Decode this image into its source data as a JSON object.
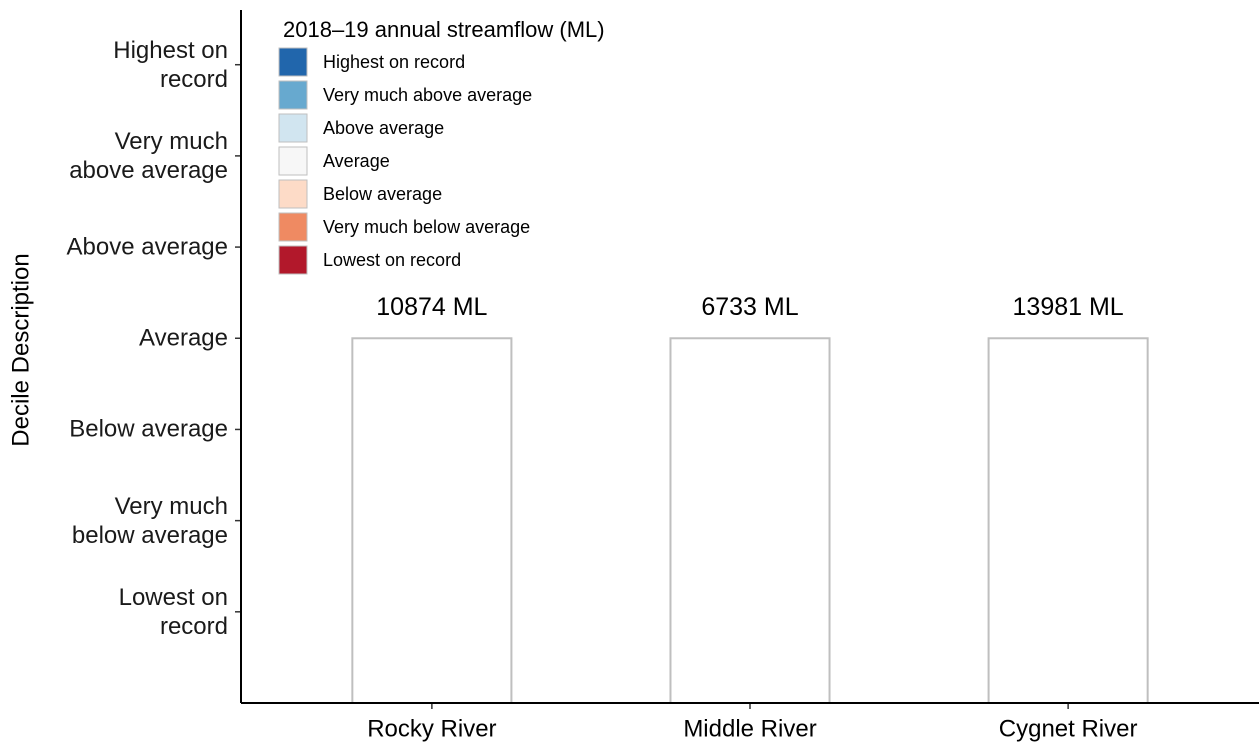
{
  "chart_data": {
    "type": "bar",
    "y_label": "Decile Description",
    "legend_title": "2018–19 annual streamflow (ML)",
    "legend": [
      {
        "name": "Highest on record",
        "color": "#2166ac"
      },
      {
        "name": "Very much above average",
        "color": "#67a9cf"
      },
      {
        "name": "Above average",
        "color": "#d1e5f0"
      },
      {
        "name": "Average",
        "color": "#f7f7f7"
      },
      {
        "name": "Below average",
        "color": "#fddbc7"
      },
      {
        "name": "Very much below average",
        "color": "#ef8a62"
      },
      {
        "name": "Lowest on record",
        "color": "#b2182b"
      }
    ],
    "categories": [
      "Rocky River",
      "Middle River",
      "Cygnet River"
    ],
    "values": [
      4,
      4,
      4
    ],
    "labels": [
      "10874 ML",
      "6733 ML",
      "13981 ML"
    ],
    "color": "#ffffff",
    "edge_color": "#bfbfbf",
    "ylim": [
      0,
      7.6
    ],
    "yticks": [
      {
        "value": 1,
        "label": "Lowest on record"
      },
      {
        "value": 2,
        "label": "Very much below average"
      },
      {
        "value": 3,
        "label": "Below average"
      },
      {
        "value": 4,
        "label": "Average"
      },
      {
        "value": 5,
        "label": "Above average"
      },
      {
        "value": 6,
        "label": "Very much above average"
      },
      {
        "value": 7,
        "label": "Highest on record"
      }
    ],
    "grid": false
  }
}
